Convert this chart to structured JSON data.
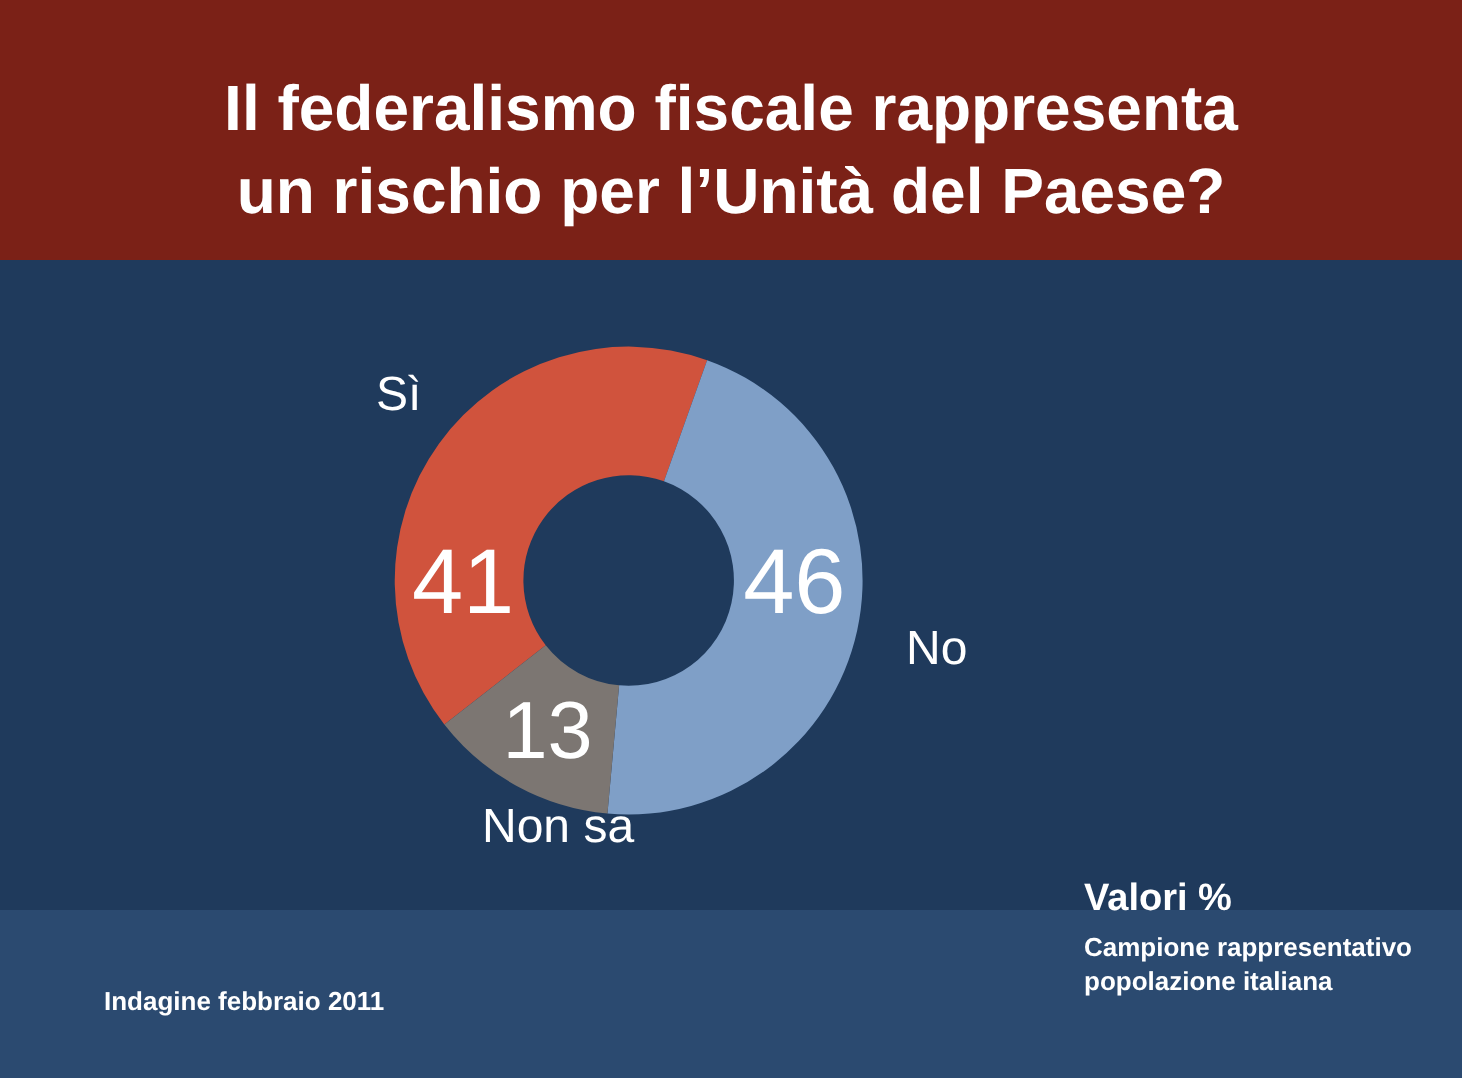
{
  "chart_data": {
    "type": "donut",
    "title": "Il federalismo fiscale rappresenta\nun rischio per l’Unità del Paese?",
    "categories": [
      "Sì",
      "No",
      "Non sa"
    ],
    "values": [
      41,
      46,
      13
    ],
    "colors": [
      "#d0533d",
      "#7f9fc7",
      "#7c7672"
    ],
    "data_labels": true,
    "legend": false,
    "annotations": [
      "Valori %",
      "Campione rappresentativo\npopolazione italiana",
      "Indagine febbraio 2011"
    ]
  }
}
